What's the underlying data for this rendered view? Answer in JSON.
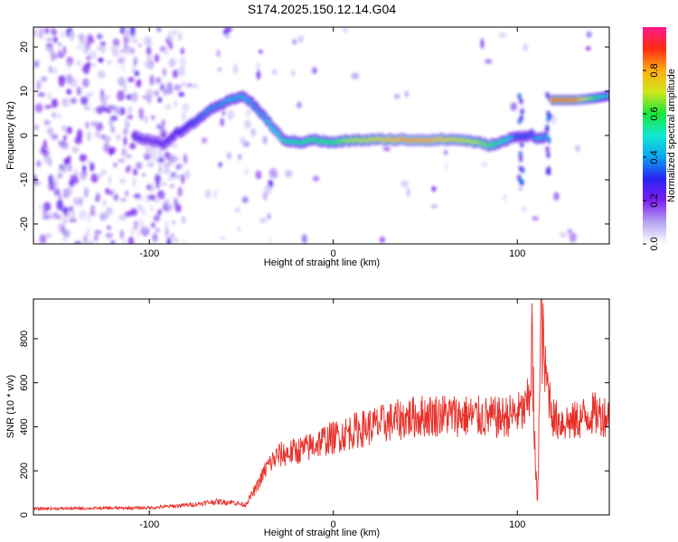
{
  "title": "S174.2025.150.12.14.G04",
  "chart_data": [
    {
      "type": "heatmap",
      "xlabel": "Height of straight line (km)",
      "ylabel": "Frequency (Hz)",
      "xlim": [
        -163,
        150
      ],
      "ylim": [
        -24.5,
        24.5
      ],
      "x_ticks": [
        -100,
        0,
        100
      ],
      "y_ticks": [
        -20,
        -10,
        0,
        10,
        20
      ],
      "colorbar": {
        "label": "Normalized spectral amplitude",
        "range": [
          0.0,
          1.0
        ],
        "ticks": [
          0.0,
          0.2,
          0.4,
          0.6,
          0.8
        ],
        "colors": [
          "#ffffff",
          "#b7a4f3",
          "#7a1ff0",
          "#2a22f2",
          "#0aa4f0",
          "#12e8d0",
          "#19e63c",
          "#cfe61b",
          "#ffae12",
          "#ff2a12",
          "#ff1a8a"
        ]
      },
      "ridge": {
        "x": [
          -108,
          -100,
          -92,
          -86,
          -80,
          -74,
          -68,
          -62,
          -56,
          -50,
          -46,
          -42,
          -36,
          -32,
          -28,
          -24,
          -18,
          -12,
          -6,
          0,
          10,
          20,
          30,
          40,
          50,
          60,
          70,
          78,
          84,
          90,
          96,
          100,
          104,
          108,
          112,
          116
        ],
        "y": [
          -0.3,
          -1.0,
          -2.0,
          0.3,
          1.6,
          3.3,
          5.6,
          6.6,
          8.0,
          9.0,
          8.0,
          6.4,
          3.5,
          1.4,
          -0.6,
          -1.3,
          -1.6,
          -0.9,
          -1.3,
          -1.6,
          -1.1,
          -1.0,
          -0.9,
          -1.0,
          -1.0,
          -0.9,
          -1.0,
          -1.5,
          -2.2,
          -1.8,
          -0.7,
          -0.3,
          -0.1,
          0.1,
          -0.8,
          -0.3
        ],
        "amplitude": [
          0.28,
          0.22,
          0.25,
          0.3,
          0.3,
          0.35,
          0.4,
          0.4,
          0.45,
          0.45,
          0.45,
          0.4,
          0.45,
          0.5,
          0.5,
          0.55,
          0.55,
          0.6,
          0.6,
          0.6,
          0.7,
          0.75,
          0.8,
          0.85,
          0.85,
          0.8,
          0.75,
          0.7,
          0.65,
          0.55,
          0.5,
          0.35,
          0.35,
          0.35,
          0.45,
          0.4
        ]
      },
      "upper_band": {
        "x": [
          119,
          132,
          143,
          150
        ],
        "y": [
          8.0,
          8.0,
          8.5,
          9.0
        ],
        "amplitude": [
          0.95,
          0.92,
          0.6,
          0.45
        ]
      }
    },
    {
      "type": "line",
      "xlabel": "Height of straight line (km)",
      "ylabel": "SNR (10 * v/v)",
      "xlim": [
        -163,
        150
      ],
      "ylim": [
        0,
        980
      ],
      "x_ticks": [
        -100,
        0,
        100
      ],
      "y_ticks": [
        0,
        200,
        400,
        600,
        800
      ],
      "color": "#e8302a",
      "envelope": {
        "x": [
          -163,
          -130,
          -100,
          -90,
          -75,
          -65,
          -55,
          -48,
          -42,
          -36,
          -30,
          -25,
          -20,
          -15,
          -10,
          -5,
          0,
          10,
          20,
          30,
          40,
          50,
          60,
          70,
          80,
          90,
          100,
          104,
          106,
          107,
          108,
          109,
          110,
          111,
          112,
          113,
          115,
          120,
          130,
          140,
          150
        ],
        "y": [
          28,
          30,
          32,
          38,
          48,
          60,
          58,
          45,
          120,
          220,
          270,
          280,
          290,
          300,
          320,
          340,
          350,
          380,
          400,
          420,
          440,
          450,
          455,
          450,
          445,
          440,
          460,
          470,
          520,
          620,
          780,
          420,
          180,
          70,
          480,
          950,
          650,
          430,
          420,
          460,
          450
        ]
      }
    }
  ]
}
